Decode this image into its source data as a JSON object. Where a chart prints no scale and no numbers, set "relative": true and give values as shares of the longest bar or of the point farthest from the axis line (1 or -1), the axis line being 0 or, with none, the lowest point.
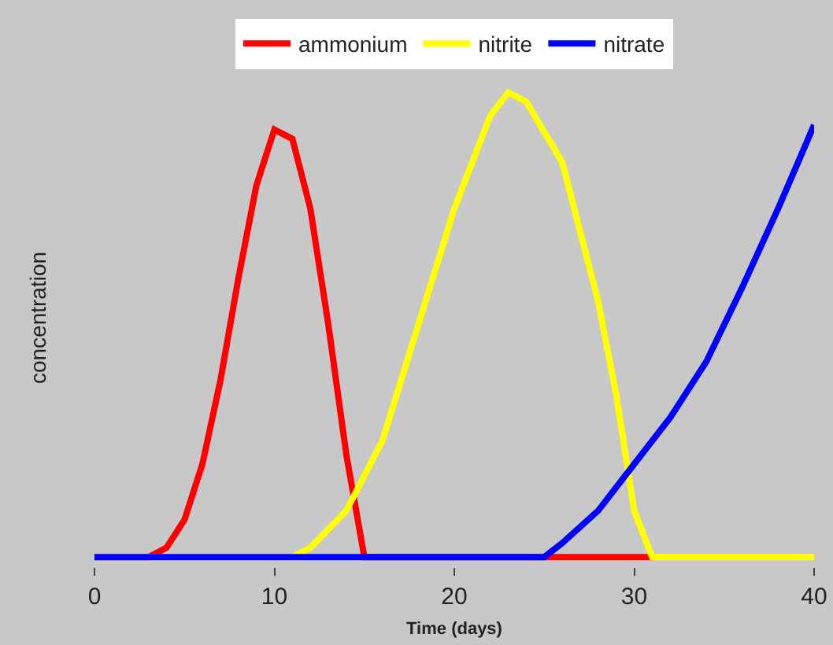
{
  "chart_data": {
    "type": "line",
    "relative": true,
    "xlabel": "Time (days)",
    "ylabel": "concentration",
    "xlim": [
      0,
      40
    ],
    "xticks": [
      0,
      10,
      20,
      30,
      40
    ],
    "grid": false,
    "legend": "top",
    "marker": "none",
    "line_style": "solid",
    "series": [
      {
        "name": "ammonium",
        "color": "#ff0000",
        "x": [
          0,
          3,
          4,
          5,
          6,
          7,
          8,
          9,
          10,
          11,
          12,
          13,
          14,
          15,
          31
        ],
        "values": [
          0,
          0,
          0.02,
          0.08,
          0.2,
          0.38,
          0.6,
          0.8,
          0.92,
          0.9,
          0.75,
          0.5,
          0.22,
          0,
          0
        ]
      },
      {
        "name": "nitrite",
        "color": "#ffff00",
        "x": [
          0,
          11,
          12,
          14,
          16,
          18,
          20,
          22,
          23,
          24,
          26,
          28,
          29,
          30,
          31,
          40
        ],
        "values": [
          0,
          0,
          0.02,
          0.1,
          0.25,
          0.5,
          0.75,
          0.95,
          1,
          0.98,
          0.85,
          0.55,
          0.35,
          0.1,
          0,
          0
        ]
      },
      {
        "name": "nitrate",
        "color": "#0000ff",
        "x": [
          0,
          25,
          26,
          28,
          30,
          32,
          34,
          36,
          38,
          40
        ],
        "values": [
          0,
          0,
          0.03,
          0.1,
          0.2,
          0.3,
          0.42,
          0.58,
          0.75,
          0.93
        ]
      }
    ]
  }
}
